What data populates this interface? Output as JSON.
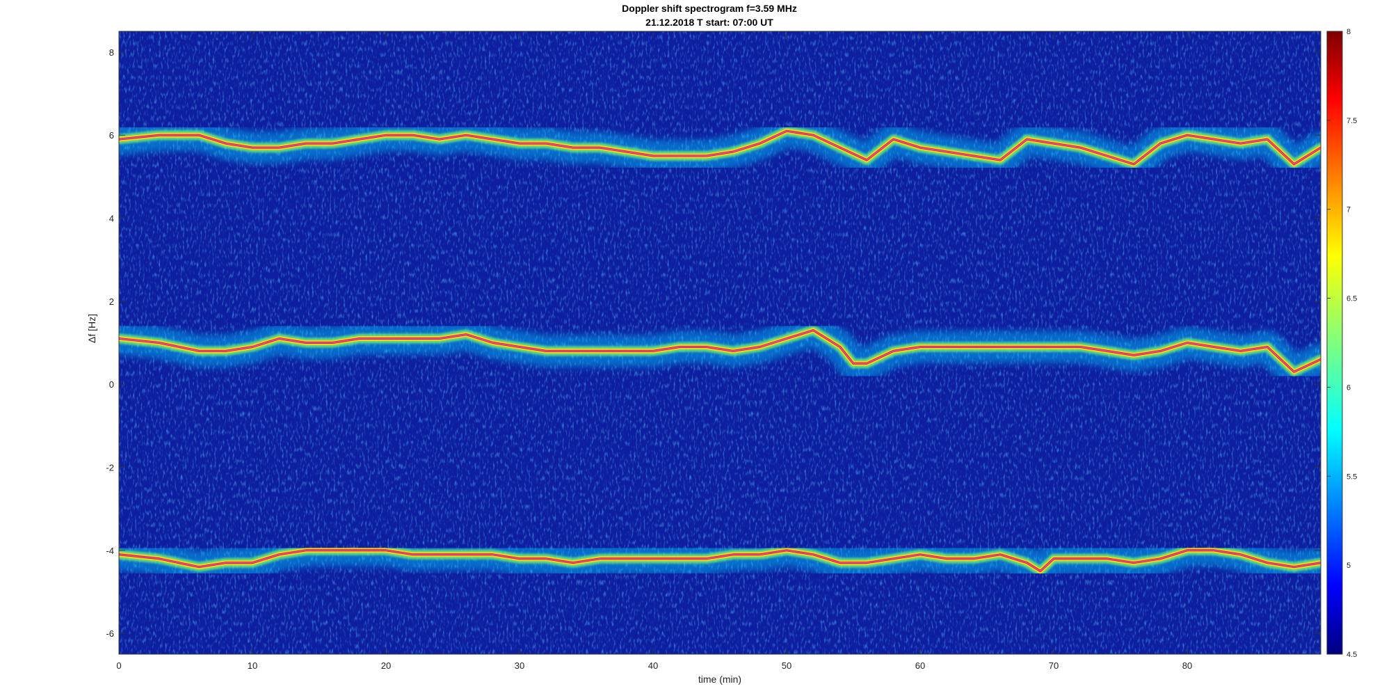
{
  "chart_data": {
    "type": "heatmap",
    "title": "Doppler shift spectrogram f=3.59 MHz",
    "subtitle": "21.12.2018    T start: 07:00 UT",
    "xlabel": "time (min)",
    "ylabel": "Δf [Hz]",
    "xlim": [
      0,
      90
    ],
    "ylim": [
      -6.5,
      8.5
    ],
    "xticks": [
      0,
      10,
      20,
      30,
      40,
      50,
      60,
      70,
      80
    ],
    "yticks": [
      -6,
      -4,
      -2,
      0,
      2,
      4,
      6,
      8
    ],
    "colorbar": {
      "range": [
        4.5,
        8
      ],
      "ticks": [
        4.5,
        5,
        5.5,
        6,
        6.5,
        7,
        7.5,
        8
      ],
      "colormap": "jet"
    },
    "series": [
      {
        "x": [
          0,
          3,
          6,
          8,
          10,
          12,
          14,
          16,
          18,
          20,
          22,
          24,
          26,
          28,
          30,
          32,
          34,
          36,
          38,
          40,
          42,
          44,
          46,
          48,
          50,
          52,
          54,
          56,
          58,
          60,
          62,
          64,
          66,
          68,
          70,
          72,
          74,
          76,
          78,
          80,
          82,
          84,
          86,
          88,
          90
        ],
        "y": [
          5.9,
          6.0,
          6.0,
          5.8,
          5.7,
          5.7,
          5.8,
          5.8,
          5.9,
          6.0,
          6.0,
          5.9,
          6.0,
          5.9,
          5.8,
          5.8,
          5.7,
          5.7,
          5.6,
          5.5,
          5.5,
          5.5,
          5.6,
          5.8,
          6.1,
          6.0,
          5.7,
          5.4,
          5.9,
          5.7,
          5.6,
          5.5,
          5.4,
          5.9,
          5.8,
          5.7,
          5.5,
          5.3,
          5.8,
          6.0,
          5.9,
          5.8,
          5.9,
          5.3,
          5.7
        ]
      },
      {
        "x": [
          0,
          3,
          6,
          8,
          10,
          12,
          14,
          16,
          18,
          20,
          22,
          24,
          26,
          28,
          30,
          32,
          34,
          36,
          38,
          40,
          42,
          44,
          46,
          48,
          50,
          52,
          54,
          55,
          56,
          58,
          60,
          62,
          64,
          66,
          68,
          70,
          72,
          74,
          76,
          78,
          80,
          82,
          84,
          86,
          88,
          90
        ],
        "y": [
          1.1,
          1.0,
          0.8,
          0.8,
          0.9,
          1.1,
          1.0,
          1.0,
          1.1,
          1.1,
          1.1,
          1.1,
          1.2,
          1.0,
          0.9,
          0.8,
          0.8,
          0.8,
          0.8,
          0.8,
          0.9,
          0.9,
          0.8,
          0.9,
          1.1,
          1.3,
          0.9,
          0.5,
          0.5,
          0.8,
          0.9,
          0.9,
          0.9,
          0.9,
          0.9,
          0.9,
          0.9,
          0.8,
          0.7,
          0.8,
          1.0,
          0.9,
          0.8,
          0.9,
          0.3,
          0.6
        ]
      },
      {
        "x": [
          0,
          3,
          6,
          8,
          10,
          12,
          14,
          16,
          18,
          20,
          22,
          24,
          26,
          28,
          30,
          32,
          34,
          36,
          38,
          40,
          42,
          44,
          46,
          48,
          50,
          52,
          54,
          56,
          58,
          60,
          62,
          64,
          66,
          68,
          69,
          70,
          72,
          74,
          76,
          78,
          80,
          82,
          84,
          86,
          88,
          90
        ],
        "y": [
          -4.1,
          -4.2,
          -4.4,
          -4.3,
          -4.3,
          -4.1,
          -4.0,
          -4.0,
          -4.0,
          -4.0,
          -4.1,
          -4.1,
          -4.1,
          -4.1,
          -4.2,
          -4.2,
          -4.3,
          -4.2,
          -4.2,
          -4.2,
          -4.2,
          -4.2,
          -4.1,
          -4.1,
          -4.0,
          -4.1,
          -4.3,
          -4.3,
          -4.2,
          -4.1,
          -4.2,
          -4.2,
          -4.1,
          -4.3,
          -4.5,
          -4.2,
          -4.2,
          -4.2,
          -4.3,
          -4.2,
          -4.0,
          -4.0,
          -4.1,
          -4.3,
          -4.4,
          -4.3
        ]
      }
    ]
  }
}
